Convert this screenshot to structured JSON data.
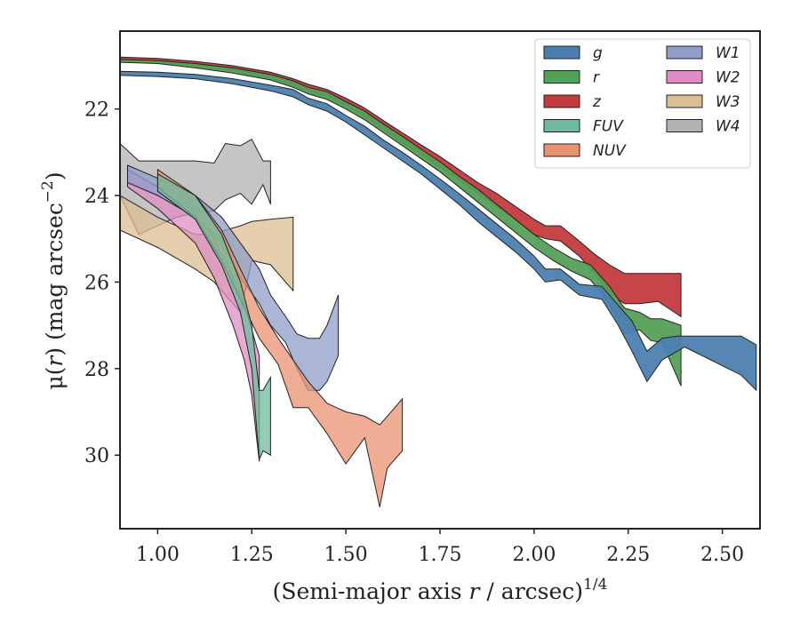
{
  "chart_data": {
    "type": "area",
    "xlabel_main": "(Semi-major axis ",
    "xlabel_var": "r",
    "xlabel_tail": " / arcsec)",
    "xlabel_exp": "1/4",
    "ylabel_pre": "μ(",
    "ylabel_var": "r",
    "ylabel_mid": ") (mag arcsec",
    "ylabel_exp": "−2",
    "ylabel_post": ")",
    "xlim": [
      0.9,
      2.6
    ],
    "ylim": [
      31.7,
      20.2
    ],
    "x_ticks": [
      "1.00",
      "1.25",
      "1.50",
      "1.75",
      "2.00",
      "2.25",
      "2.50"
    ],
    "x_tick_values": [
      1.0,
      1.25,
      1.5,
      1.75,
      2.0,
      2.25,
      2.5
    ],
    "y_ticks": [
      "22",
      "24",
      "26",
      "28",
      "30"
    ],
    "y_tick_values": [
      22,
      24,
      26,
      28,
      30
    ],
    "legend_position": "upper right",
    "legend_columns": 2,
    "series": [
      {
        "name": "g",
        "color": "#4c7fb0",
        "points": [
          [
            0.9,
            21.13,
            21.22
          ],
          [
            1.0,
            21.15,
            21.25
          ],
          [
            1.1,
            21.2,
            21.3
          ],
          [
            1.2,
            21.3,
            21.42
          ],
          [
            1.3,
            21.45,
            21.58
          ],
          [
            1.36,
            21.55,
            21.72
          ],
          [
            1.4,
            21.75,
            21.9
          ],
          [
            1.45,
            21.88,
            22.05
          ],
          [
            1.5,
            22.15,
            22.3
          ],
          [
            1.55,
            22.4,
            22.6
          ],
          [
            1.6,
            22.72,
            22.9
          ],
          [
            1.65,
            23.0,
            23.2
          ],
          [
            1.7,
            23.3,
            23.5
          ],
          [
            1.75,
            23.62,
            23.85
          ],
          [
            1.8,
            23.95,
            24.2
          ],
          [
            1.85,
            24.3,
            24.6
          ],
          [
            1.9,
            24.65,
            24.95
          ],
          [
            1.95,
            25.0,
            25.3
          ],
          [
            2.0,
            25.4,
            25.7
          ],
          [
            2.03,
            25.7,
            26.0
          ],
          [
            2.07,
            25.7,
            25.95
          ],
          [
            2.12,
            26.05,
            26.3
          ],
          [
            2.18,
            26.1,
            26.4
          ],
          [
            2.22,
            26.5,
            26.95
          ],
          [
            2.26,
            26.9,
            27.6
          ],
          [
            2.3,
            27.6,
            28.3
          ],
          [
            2.34,
            27.3,
            27.8
          ],
          [
            2.38,
            27.25,
            27.6
          ],
          [
            2.4,
            27.25,
            27.5
          ],
          [
            2.55,
            27.25,
            28.15
          ],
          [
            2.59,
            27.45,
            28.5
          ]
        ]
      },
      {
        "name": "r",
        "color": "#55a058",
        "points": [
          [
            0.9,
            20.85,
            20.92
          ],
          [
            1.0,
            20.88,
            20.95
          ],
          [
            1.1,
            20.95,
            21.05
          ],
          [
            1.2,
            21.05,
            21.17
          ],
          [
            1.3,
            21.2,
            21.33
          ],
          [
            1.36,
            21.35,
            21.5
          ],
          [
            1.4,
            21.5,
            21.65
          ],
          [
            1.45,
            21.6,
            21.78
          ],
          [
            1.5,
            21.83,
            22.0
          ],
          [
            1.55,
            22.05,
            22.25
          ],
          [
            1.6,
            22.35,
            22.55
          ],
          [
            1.65,
            22.63,
            22.85
          ],
          [
            1.7,
            22.93,
            23.15
          ],
          [
            1.75,
            23.22,
            23.45
          ],
          [
            1.8,
            23.55,
            23.8
          ],
          [
            1.85,
            23.85,
            24.15
          ],
          [
            1.9,
            24.2,
            24.5
          ],
          [
            1.95,
            24.55,
            24.85
          ],
          [
            2.0,
            24.9,
            25.2
          ],
          [
            2.05,
            25.2,
            25.5
          ],
          [
            2.1,
            25.45,
            25.75
          ],
          [
            2.15,
            25.6,
            25.95
          ],
          [
            2.2,
            26.1,
            26.5
          ],
          [
            2.24,
            26.6,
            27.2
          ],
          [
            2.28,
            26.7,
            27.1
          ],
          [
            2.31,
            26.85,
            27.35
          ],
          [
            2.34,
            26.85,
            27.4
          ],
          [
            2.39,
            27.0,
            28.4
          ]
        ]
      },
      {
        "name": "z",
        "color": "#c43b3f",
        "points": [
          [
            0.9,
            20.8,
            20.88
          ],
          [
            1.0,
            20.83,
            20.91
          ],
          [
            1.1,
            20.9,
            21.0
          ],
          [
            1.2,
            21.0,
            21.12
          ],
          [
            1.3,
            21.15,
            21.28
          ],
          [
            1.36,
            21.3,
            21.45
          ],
          [
            1.4,
            21.43,
            21.58
          ],
          [
            1.45,
            21.55,
            21.72
          ],
          [
            1.5,
            21.75,
            21.92
          ],
          [
            1.55,
            21.98,
            22.18
          ],
          [
            1.6,
            22.27,
            22.48
          ],
          [
            1.65,
            22.55,
            22.78
          ],
          [
            1.7,
            22.83,
            23.05
          ],
          [
            1.75,
            23.1,
            23.35
          ],
          [
            1.8,
            23.4,
            23.65
          ],
          [
            1.85,
            23.7,
            23.95
          ],
          [
            1.9,
            23.95,
            24.25
          ],
          [
            1.95,
            24.25,
            24.55
          ],
          [
            2.0,
            24.55,
            24.9
          ],
          [
            2.03,
            24.7,
            25.0
          ],
          [
            2.07,
            24.7,
            25.05
          ],
          [
            2.12,
            25.05,
            25.4
          ],
          [
            2.16,
            25.35,
            25.8
          ],
          [
            2.2,
            25.6,
            26.25
          ],
          [
            2.24,
            25.8,
            26.5
          ],
          [
            2.28,
            25.8,
            26.5
          ],
          [
            2.33,
            25.8,
            26.45
          ],
          [
            2.39,
            25.8,
            26.8
          ]
        ]
      },
      {
        "name": "FUV",
        "color": "#6dbb9c",
        "points": [
          [
            1.0,
            23.5,
            23.9
          ],
          [
            1.1,
            24.0,
            24.55
          ],
          [
            1.17,
            24.9,
            25.6
          ],
          [
            1.22,
            26.0,
            26.7
          ],
          [
            1.25,
            27.0,
            28.0
          ],
          [
            1.27,
            28.5,
            30.1
          ],
          [
            1.28,
            28.5,
            29.9
          ],
          [
            1.3,
            28.2,
            30.0
          ]
        ]
      },
      {
        "name": "NUV",
        "color": "#e89270",
        "points": [
          [
            1.0,
            23.4,
            23.8
          ],
          [
            1.1,
            24.0,
            24.5
          ],
          [
            1.17,
            24.8,
            25.5
          ],
          [
            1.22,
            25.7,
            26.4
          ],
          [
            1.27,
            26.6,
            27.3
          ],
          [
            1.32,
            27.3,
            27.9
          ],
          [
            1.36,
            27.8,
            28.9
          ],
          [
            1.4,
            28.3,
            28.9
          ],
          [
            1.45,
            28.8,
            29.5
          ],
          [
            1.5,
            29.0,
            30.2
          ],
          [
            1.55,
            29.1,
            29.6
          ],
          [
            1.59,
            29.3,
            31.2
          ],
          [
            1.61,
            29.1,
            30.3
          ],
          [
            1.65,
            28.7,
            29.9
          ]
        ]
      },
      {
        "name": "W1",
        "color": "#8f9ec8",
        "points": [
          [
            0.92,
            23.3,
            23.7
          ],
          [
            1.0,
            23.6,
            24.0
          ],
          [
            1.1,
            24.0,
            24.5
          ],
          [
            1.17,
            24.5,
            25.1
          ],
          [
            1.22,
            25.1,
            25.9
          ],
          [
            1.27,
            25.7,
            26.5
          ],
          [
            1.3,
            26.3,
            27.0
          ],
          [
            1.34,
            26.8,
            27.4
          ],
          [
            1.37,
            27.2,
            28.0
          ],
          [
            1.4,
            27.3,
            28.5
          ],
          [
            1.43,
            27.3,
            28.5
          ],
          [
            1.45,
            27.0,
            28.3
          ],
          [
            1.48,
            26.3,
            27.7
          ]
        ]
      },
      {
        "name": "W2",
        "color": "#dd8dc4",
        "points": [
          [
            0.92,
            23.4,
            23.8
          ],
          [
            1.0,
            23.8,
            24.3
          ],
          [
            1.1,
            24.4,
            25.1
          ],
          [
            1.15,
            25.0,
            25.9
          ],
          [
            1.2,
            25.9,
            27.0
          ],
          [
            1.23,
            26.5,
            27.8
          ],
          [
            1.25,
            27.1,
            28.6
          ],
          [
            1.27,
            27.7,
            30.15
          ]
        ]
      },
      {
        "name": "W3",
        "color": "#dcbe93",
        "points": [
          [
            0.9,
            24.0,
            24.8
          ],
          [
            1.0,
            24.5,
            25.2
          ],
          [
            1.1,
            24.9,
            25.7
          ],
          [
            1.15,
            24.9,
            26.0
          ],
          [
            1.18,
            24.8,
            26.3
          ],
          [
            1.22,
            24.7,
            26.7
          ],
          [
            1.25,
            24.6,
            25.5
          ],
          [
            1.3,
            24.55,
            25.6
          ],
          [
            1.36,
            24.5,
            26.2
          ]
        ]
      },
      {
        "name": "W4",
        "color": "#b2b2b2",
        "points": [
          [
            0.9,
            22.8,
            24.0
          ],
          [
            0.95,
            23.2,
            24.9
          ],
          [
            1.0,
            23.2,
            24.7
          ],
          [
            1.05,
            23.2,
            24.5
          ],
          [
            1.1,
            23.2,
            24.4
          ],
          [
            1.15,
            23.25,
            24.35
          ],
          [
            1.18,
            22.8,
            24.1
          ],
          [
            1.22,
            22.85,
            23.95
          ],
          [
            1.25,
            22.7,
            24.2
          ],
          [
            1.28,
            23.2,
            23.75
          ],
          [
            1.3,
            23.2,
            24.2
          ]
        ]
      }
    ]
  }
}
